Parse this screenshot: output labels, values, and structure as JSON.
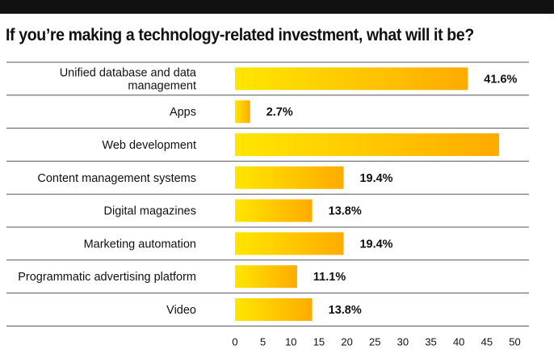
{
  "title": "If you’re making a technology-related investment, what will it be?",
  "colors": {
    "bar_start": "#ffe600",
    "bar_end": "#ffab00",
    "top_bar": "#111111",
    "divider": "#555555",
    "text": "#111111"
  },
  "chart_data": {
    "type": "bar",
    "orientation": "horizontal",
    "title": "If you’re making a technology-related investment, what will it be?",
    "categories": [
      "Unified database and data management",
      "Apps",
      "Web development",
      "Content management systems",
      "Digital magazines",
      "Marketing automation",
      "Programmatic advertising platform",
      "Video"
    ],
    "category_lines": [
      [
        "Unified database and data",
        "management"
      ],
      [
        "Apps"
      ],
      [
        "Web development"
      ],
      [
        "Content management systems"
      ],
      [
        "Digital magazines"
      ],
      [
        "Marketing automation"
      ],
      [
        "Programmatic advertising platform"
      ],
      [
        "Video"
      ]
    ],
    "values": [
      41.6,
      2.7,
      47.2,
      19.4,
      13.8,
      19.4,
      11.1,
      13.8
    ],
    "value_labels": [
      "41.6%",
      "2.7%",
      "",
      "19.4%",
      "13.8%",
      "19.4%",
      "11.1%",
      "13.8%"
    ],
    "xlim": [
      0,
      50
    ],
    "xticks": [
      0,
      5,
      10,
      15,
      20,
      25,
      30,
      35,
      40,
      45,
      50
    ],
    "xlabel": "",
    "ylabel": "",
    "grid": false
  }
}
